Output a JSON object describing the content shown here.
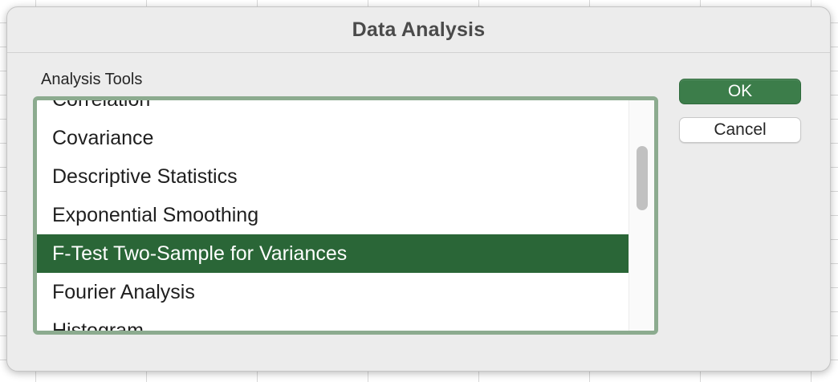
{
  "dialog": {
    "title": "Data Analysis",
    "section_label": "Analysis Tools",
    "ok_label": "OK",
    "cancel_label": "Cancel"
  },
  "tools_list": {
    "items": [
      "Correlation",
      "Covariance",
      "Descriptive Statistics",
      "Exponential Smoothing",
      "F-Test Two-Sample for Variances",
      "Fourier Analysis",
      "Histogram"
    ],
    "selected": "F-Test Two-Sample for Variances"
  },
  "colors": {
    "selection": "#2a6637",
    "ok_button": "#3c7d4a",
    "focus_ring": "#8cab8f"
  }
}
